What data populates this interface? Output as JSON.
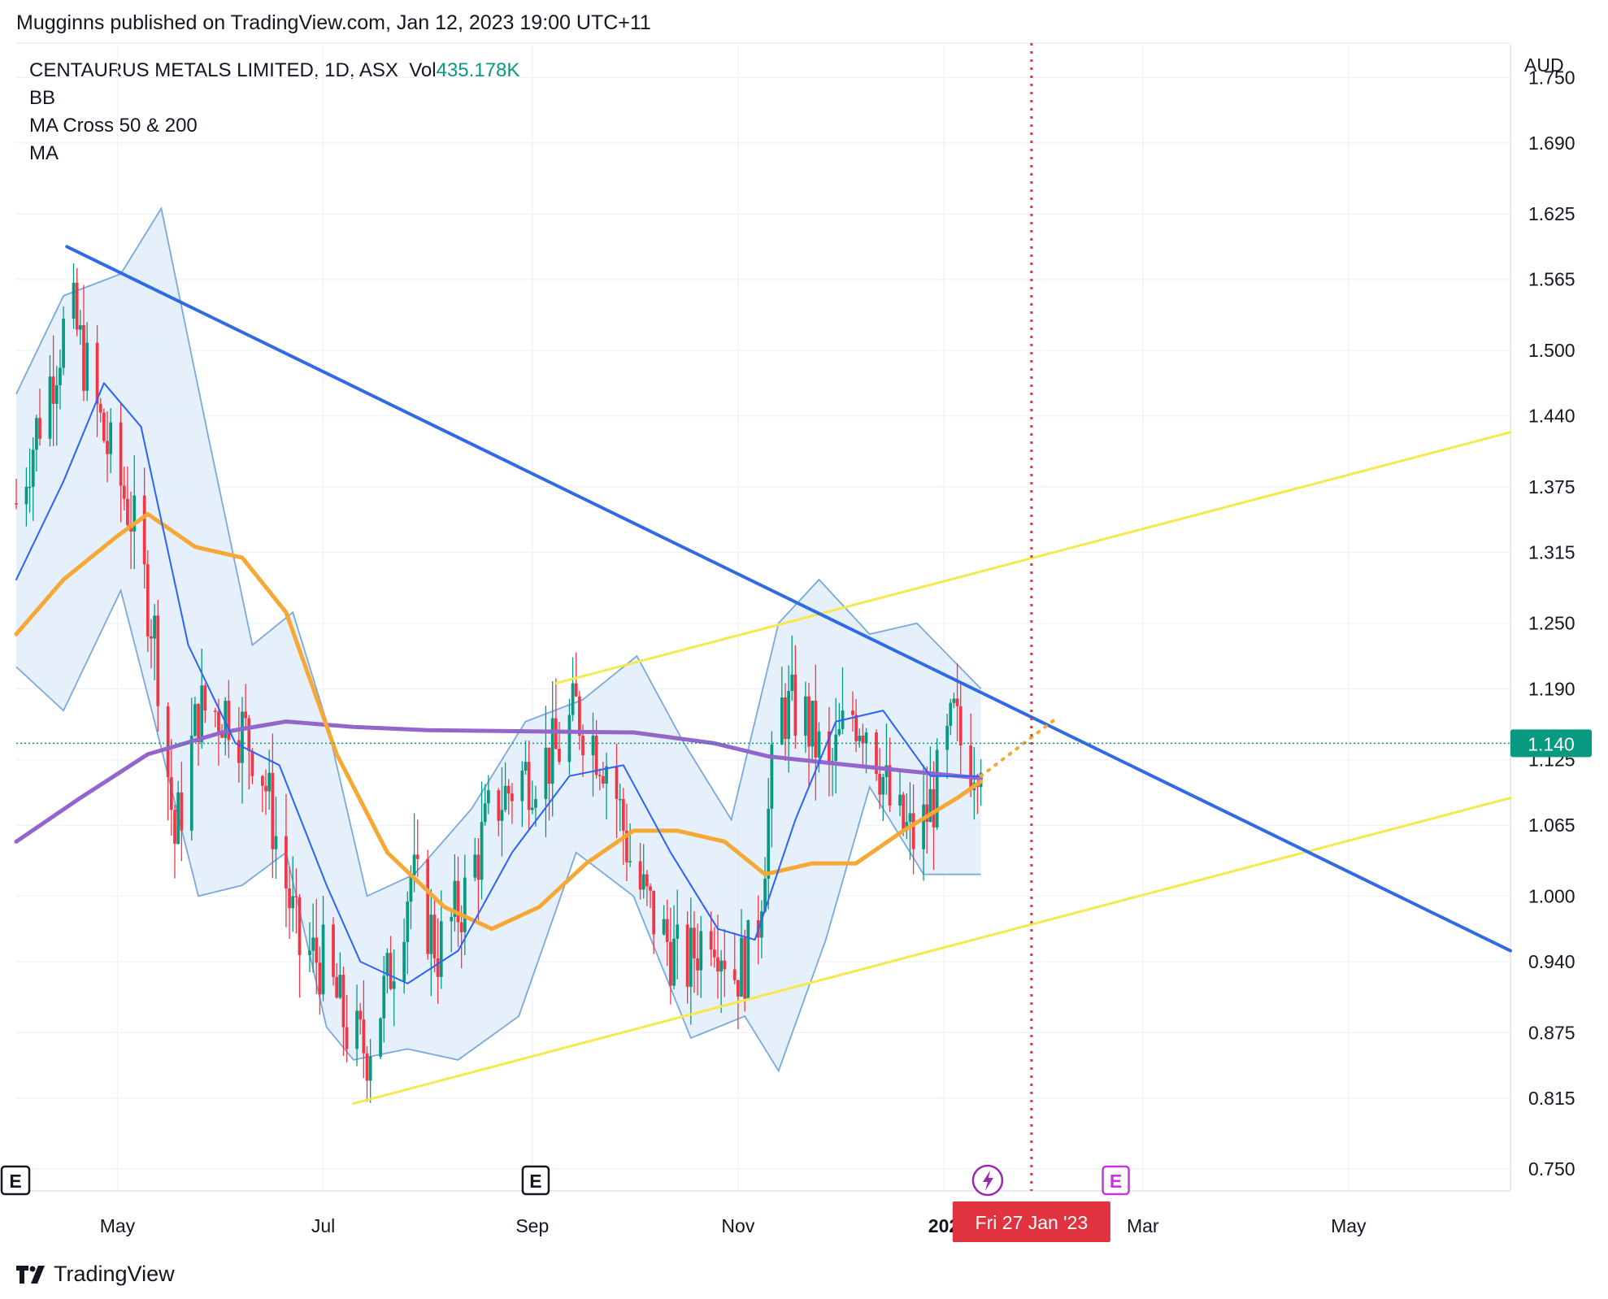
{
  "header": {
    "publisher_line": "Mugginns published on TradingView.com, Jan 12, 2023 19:00 UTC+11"
  },
  "legend": {
    "symbol_line": "CENTAURUS METALS LIMITED, 1D, ASX",
    "vol_label": "Vol",
    "vol_value": "435.178K",
    "indicator_bb": "BB",
    "indicator_ma_cross": "MA Cross 50 & 200",
    "indicator_ma": "MA"
  },
  "price_axis": {
    "currency": "AUD",
    "ticks": [
      "1.750",
      "1.690",
      "1.625",
      "1.565",
      "1.500",
      "1.440",
      "1.375",
      "1.315",
      "1.250",
      "1.190",
      "1.125",
      "1.065",
      "1.000",
      "0.940",
      "0.875",
      "0.815",
      "0.750"
    ],
    "last_price_label": "1.140"
  },
  "time_axis": {
    "ticks": [
      "May",
      "Jul",
      "Sep",
      "Nov",
      "202",
      "Mar",
      "May"
    ],
    "crosshair_label": "Fri 27 Jan '23"
  },
  "markers": {
    "earnings_letter": "E"
  },
  "brand": {
    "name": "TradingView"
  },
  "colors": {
    "up": "#089981",
    "down": "#f23645",
    "bb_fill": "#dcebf8",
    "bb_line": "#7aa9dd",
    "bb_basis": "#2962ff",
    "ma50": "#f7a733",
    "ma200": "#9366cc",
    "trend_blue": "#2e6be5",
    "trend_yellow": "#f5e94b",
    "crosshair": "#e0323f",
    "last_price_bg": "#089981"
  },
  "chart_data": {
    "type": "candlestick",
    "title": "CENTAURUS METALS LIMITED, 1D, ASX",
    "ylabel": "AUD",
    "ylim": [
      0.73,
      1.78
    ],
    "x_range": [
      "2022-04-01",
      "2023-06-18"
    ],
    "grid": true,
    "last_price": 1.14,
    "crosshair_date": "2023-01-27",
    "closes_keypoints": [
      {
        "d": "2022-04-01",
        "v": 1.36
      },
      {
        "d": "2022-04-10",
        "v": 1.46
      },
      {
        "d": "2022-04-17",
        "v": 1.54
      },
      {
        "d": "2022-04-27",
        "v": 1.42
      },
      {
        "d": "2022-05-05",
        "v": 1.35
      },
      {
        "d": "2022-05-12",
        "v": 1.24
      },
      {
        "d": "2022-05-18",
        "v": 1.05
      },
      {
        "d": "2022-05-25",
        "v": 1.17
      },
      {
        "d": "2022-06-03",
        "v": 1.17
      },
      {
        "d": "2022-06-12",
        "v": 1.13
      },
      {
        "d": "2022-06-18",
        "v": 1.04
      },
      {
        "d": "2022-06-24",
        "v": 0.95
      },
      {
        "d": "2022-07-01",
        "v": 0.94
      },
      {
        "d": "2022-07-09",
        "v": 0.87
      },
      {
        "d": "2022-07-14",
        "v": 0.86
      },
      {
        "d": "2022-07-20",
        "v": 0.92
      },
      {
        "d": "2022-07-27",
        "v": 1.02
      },
      {
        "d": "2022-08-04",
        "v": 0.95
      },
      {
        "d": "2022-08-12",
        "v": 1.0
      },
      {
        "d": "2022-08-20",
        "v": 1.08
      },
      {
        "d": "2022-08-29",
        "v": 1.11
      },
      {
        "d": "2022-09-08",
        "v": 1.13
      },
      {
        "d": "2022-09-14",
        "v": 1.17
      },
      {
        "d": "2022-09-24",
        "v": 1.12
      },
      {
        "d": "2022-10-01",
        "v": 1.02
      },
      {
        "d": "2022-10-07",
        "v": 0.98
      },
      {
        "d": "2022-10-16",
        "v": 0.93
      },
      {
        "d": "2022-10-24",
        "v": 0.98
      },
      {
        "d": "2022-10-31",
        "v": 0.93
      },
      {
        "d": "2022-11-06",
        "v": 0.95
      },
      {
        "d": "2022-11-13",
        "v": 1.17
      },
      {
        "d": "2022-11-20",
        "v": 1.17
      },
      {
        "d": "2022-11-28",
        "v": 1.11
      },
      {
        "d": "2022-12-04",
        "v": 1.17
      },
      {
        "d": "2022-12-10",
        "v": 1.16
      },
      {
        "d": "2022-12-17",
        "v": 1.07
      },
      {
        "d": "2022-12-24",
        "v": 1.05
      },
      {
        "d": "2022-12-30",
        "v": 1.1
      },
      {
        "d": "2023-01-04",
        "v": 1.16
      },
      {
        "d": "2023-01-08",
        "v": 1.12
      },
      {
        "d": "2023-01-12",
        "v": 1.14
      }
    ],
    "indicators": {
      "ma50": [
        {
          "d": "2022-04-01",
          "v": 1.24
        },
        {
          "d": "2022-04-15",
          "v": 1.29
        },
        {
          "d": "2022-05-01",
          "v": 1.33
        },
        {
          "d": "2022-05-10",
          "v": 1.35
        },
        {
          "d": "2022-05-24",
          "v": 1.32
        },
        {
          "d": "2022-06-07",
          "v": 1.31
        },
        {
          "d": "2022-06-20",
          "v": 1.26
        },
        {
          "d": "2022-07-05",
          "v": 1.13
        },
        {
          "d": "2022-07-20",
          "v": 1.04
        },
        {
          "d": "2022-08-06",
          "v": 0.99
        },
        {
          "d": "2022-08-20",
          "v": 0.97
        },
        {
          "d": "2022-09-03",
          "v": 0.99
        },
        {
          "d": "2022-09-17",
          "v": 1.03
        },
        {
          "d": "2022-10-01",
          "v": 1.06
        },
        {
          "d": "2022-10-14",
          "v": 1.06
        },
        {
          "d": "2022-10-28",
          "v": 1.05
        },
        {
          "d": "2022-11-09",
          "v": 1.02
        },
        {
          "d": "2022-11-23",
          "v": 1.03
        },
        {
          "d": "2022-12-06",
          "v": 1.03
        },
        {
          "d": "2022-12-20",
          "v": 1.06
        },
        {
          "d": "2023-01-05",
          "v": 1.09
        },
        {
          "d": "2023-01-12",
          "v": 1.105
        }
      ],
      "ma200": [
        {
          "d": "2022-04-01",
          "v": 1.05
        },
        {
          "d": "2022-04-20",
          "v": 1.09
        },
        {
          "d": "2022-05-10",
          "v": 1.13
        },
        {
          "d": "2022-06-01",
          "v": 1.15
        },
        {
          "d": "2022-06-20",
          "v": 1.16
        },
        {
          "d": "2022-07-10",
          "v": 1.155
        },
        {
          "d": "2022-08-01",
          "v": 1.152
        },
        {
          "d": "2022-09-01",
          "v": 1.151
        },
        {
          "d": "2022-10-01",
          "v": 1.15
        },
        {
          "d": "2022-10-25",
          "v": 1.14
        },
        {
          "d": "2022-11-10",
          "v": 1.128
        },
        {
          "d": "2022-12-01",
          "v": 1.121
        },
        {
          "d": "2022-12-20",
          "v": 1.115
        },
        {
          "d": "2023-01-12",
          "v": 1.108
        }
      ],
      "bb_upper": [
        {
          "d": "2022-04-01",
          "v": 1.46
        },
        {
          "d": "2022-04-15",
          "v": 1.55
        },
        {
          "d": "2022-05-02",
          "v": 1.57
        },
        {
          "d": "2022-05-14",
          "v": 1.63
        },
        {
          "d": "2022-05-28",
          "v": 1.42
        },
        {
          "d": "2022-06-10",
          "v": 1.23
        },
        {
          "d": "2022-06-22",
          "v": 1.26
        },
        {
          "d": "2022-07-02",
          "v": 1.16
        },
        {
          "d": "2022-07-14",
          "v": 1.0
        },
        {
          "d": "2022-07-28",
          "v": 1.02
        },
        {
          "d": "2022-08-14",
          "v": 1.08
        },
        {
          "d": "2022-08-30",
          "v": 1.16
        },
        {
          "d": "2022-09-16",
          "v": 1.18
        },
        {
          "d": "2022-10-02",
          "v": 1.22
        },
        {
          "d": "2022-10-16",
          "v": 1.14
        },
        {
          "d": "2022-10-30",
          "v": 1.07
        },
        {
          "d": "2022-11-13",
          "v": 1.25
        },
        {
          "d": "2022-11-25",
          "v": 1.29
        },
        {
          "d": "2022-12-10",
          "v": 1.24
        },
        {
          "d": "2022-12-24",
          "v": 1.25
        },
        {
          "d": "2023-01-12",
          "v": 1.19
        }
      ],
      "bb_lower": [
        {
          "d": "2022-04-01",
          "v": 1.21
        },
        {
          "d": "2022-04-15",
          "v": 1.17
        },
        {
          "d": "2022-05-02",
          "v": 1.28
        },
        {
          "d": "2022-05-12",
          "v": 1.16
        },
        {
          "d": "2022-05-25",
          "v": 1.0
        },
        {
          "d": "2022-06-07",
          "v": 1.01
        },
        {
          "d": "2022-06-20",
          "v": 1.04
        },
        {
          "d": "2022-07-02",
          "v": 0.88
        },
        {
          "d": "2022-07-10",
          "v": 0.85
        },
        {
          "d": "2022-07-26",
          "v": 0.86
        },
        {
          "d": "2022-08-10",
          "v": 0.85
        },
        {
          "d": "2022-08-28",
          "v": 0.89
        },
        {
          "d": "2022-09-14",
          "v": 1.04
        },
        {
          "d": "2022-10-01",
          "v": 1.0
        },
        {
          "d": "2022-10-18",
          "v": 0.87
        },
        {
          "d": "2022-11-03",
          "v": 0.89
        },
        {
          "d": "2022-11-13",
          "v": 0.84
        },
        {
          "d": "2022-11-27",
          "v": 0.96
        },
        {
          "d": "2022-12-10",
          "v": 1.1
        },
        {
          "d": "2022-12-26",
          "v": 1.02
        },
        {
          "d": "2023-01-12",
          "v": 1.02
        }
      ],
      "bb_basis": [
        {
          "d": "2022-04-01",
          "v": 1.29
        },
        {
          "d": "2022-04-15",
          "v": 1.38
        },
        {
          "d": "2022-04-27",
          "v": 1.47
        },
        {
          "d": "2022-05-08",
          "v": 1.43
        },
        {
          "d": "2022-05-22",
          "v": 1.23
        },
        {
          "d": "2022-06-05",
          "v": 1.14
        },
        {
          "d": "2022-06-18",
          "v": 1.12
        },
        {
          "d": "2022-07-02",
          "v": 1.01
        },
        {
          "d": "2022-07-12",
          "v": 0.94
        },
        {
          "d": "2022-07-26",
          "v": 0.92
        },
        {
          "d": "2022-08-10",
          "v": 0.95
        },
        {
          "d": "2022-08-26",
          "v": 1.04
        },
        {
          "d": "2022-09-12",
          "v": 1.11
        },
        {
          "d": "2022-09-28",
          "v": 1.12
        },
        {
          "d": "2022-10-12",
          "v": 1.04
        },
        {
          "d": "2022-10-26",
          "v": 0.97
        },
        {
          "d": "2022-11-06",
          "v": 0.96
        },
        {
          "d": "2022-11-18",
          "v": 1.07
        },
        {
          "d": "2022-11-30",
          "v": 1.16
        },
        {
          "d": "2022-12-14",
          "v": 1.17
        },
        {
          "d": "2022-12-28",
          "v": 1.11
        },
        {
          "d": "2023-01-12",
          "v": 1.11
        }
      ]
    },
    "drawings": {
      "trendlines_blue": [
        {
          "from": {
            "d": "2022-04-16",
            "v": 1.595
          },
          "to": {
            "d": "2023-06-18",
            "v": 0.95
          }
        }
      ],
      "trendlines_yellow": [
        {
          "from": {
            "d": "2022-09-08",
            "v": 1.195
          },
          "to": {
            "d": "2023-06-18",
            "v": 1.425
          }
        },
        {
          "from": {
            "d": "2022-07-10",
            "v": 0.81
          },
          "to": {
            "d": "2023-06-18",
            "v": 1.09
          }
        }
      ],
      "projection_orange": {
        "from": {
          "d": "2023-01-12",
          "v": 1.11
        },
        "to": {
          "d": "2023-02-03",
          "v": 1.162
        }
      }
    }
  }
}
